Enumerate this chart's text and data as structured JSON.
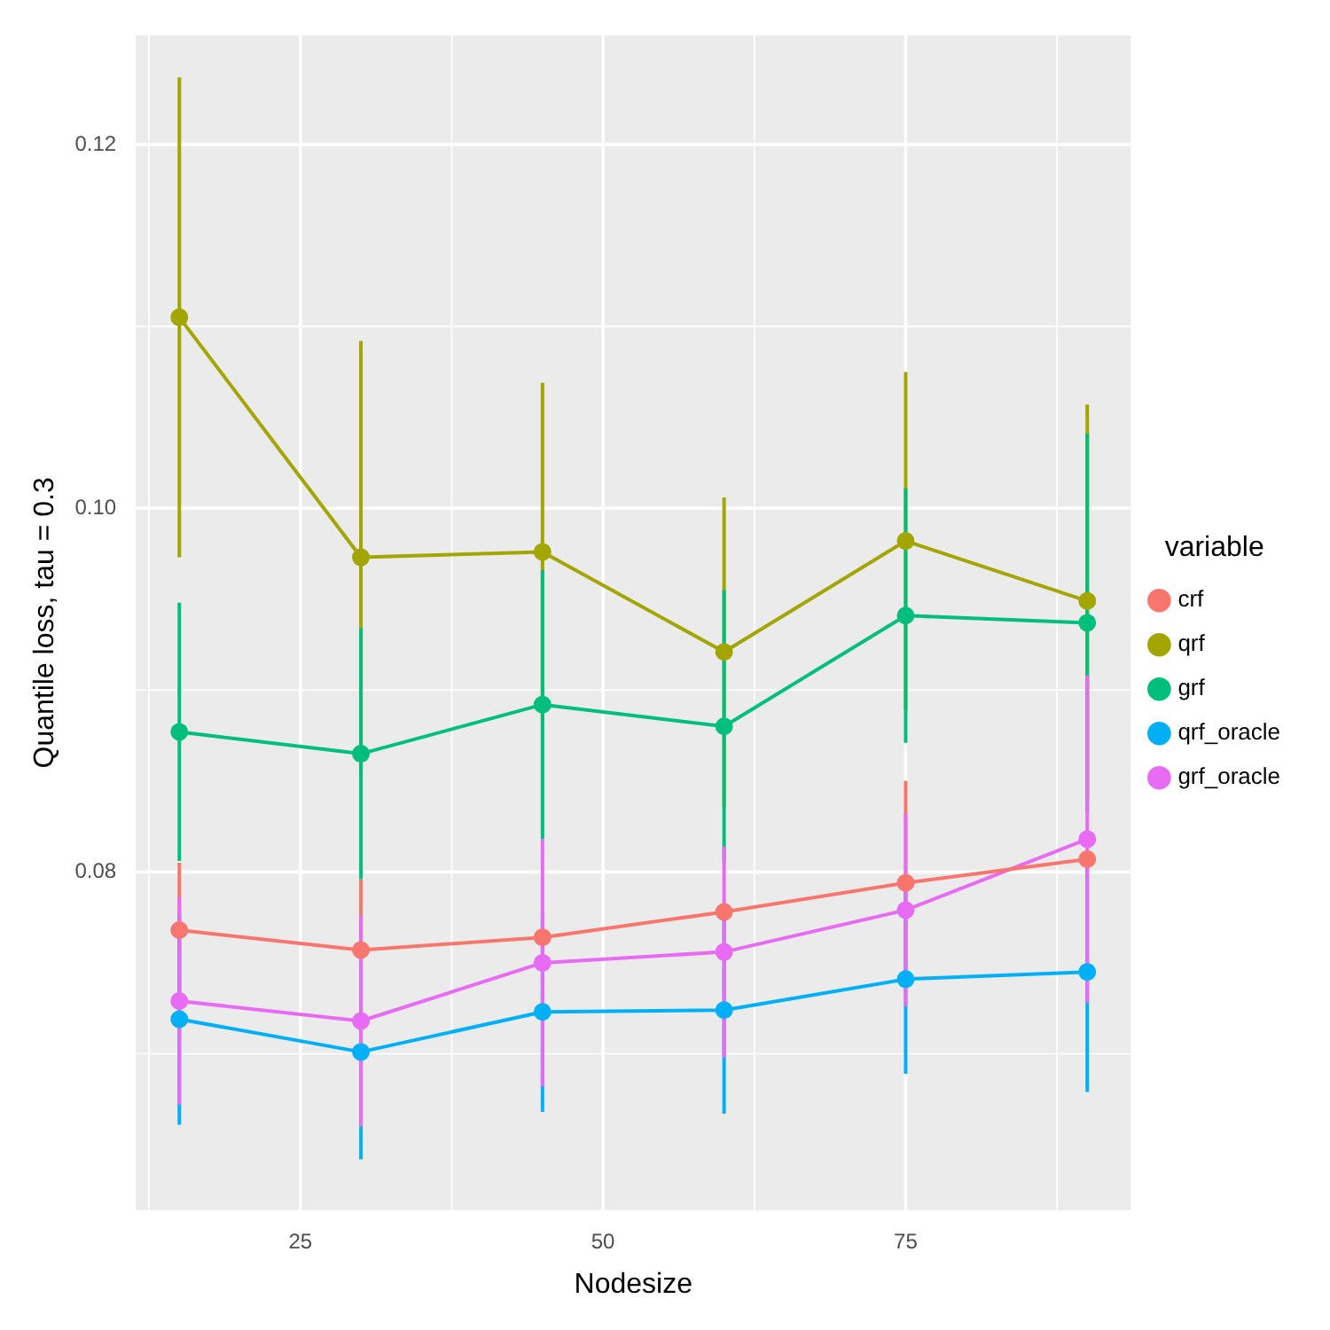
{
  "chart_data": {
    "type": "line",
    "xlabel": "Nodesize",
    "ylabel": "Quantile loss, tau = 0.3",
    "legend_title": "variable",
    "legend": "right",
    "grid": true,
    "marker": "circle",
    "line_style": "solid",
    "x": [
      15,
      30,
      45,
      60,
      75,
      90
    ],
    "xlim": [
      11.4,
      93.6
    ],
    "xticks": [
      25,
      50,
      75
    ],
    "ylim": [
      0.0614,
      0.126
    ],
    "yticks": [
      0.08,
      {
        "value": 0.1,
        "label": "0.10"
      },
      0.12
    ],
    "series": [
      {
        "name": "crf",
        "color": "#f8766d",
        "values": [
          0.0768,
          0.0757,
          0.0764,
          0.0778,
          0.0794,
          0.0807
        ],
        "errors": [
          0.0037,
          0.0039,
          null,
          null,
          0.0056,
          null
        ]
      },
      {
        "name": "qrf",
        "color": "#a3a500",
        "values": [
          0.1105,
          0.0973,
          0.0976,
          0.0921,
          0.0982,
          0.0949
        ],
        "errors": [
          0.0132,
          0.0119,
          0.0093,
          0.0085,
          0.0093,
          0.0108
        ]
      },
      {
        "name": "grf",
        "color": "#00bf7d",
        "values": [
          0.0877,
          0.0865,
          0.0892,
          0.088,
          0.0941,
          0.0937
        ],
        "errors": [
          0.0071,
          0.0069,
          0.0074,
          0.0075,
          0.007,
          0.0104
        ]
      },
      {
        "name": "qrf_oracle",
        "color": "#00b0f6",
        "values": [
          0.0719,
          0.0701,
          0.0723,
          0.0724,
          0.0741,
          0.0745
        ],
        "errors": [
          0.0058,
          0.0059,
          0.0055,
          0.0057,
          0.0052,
          0.0066
        ]
      },
      {
        "name": "grf_oracle",
        "color": "#e76bf3",
        "values": [
          0.0729,
          0.0718,
          0.075,
          0.0756,
          0.0779,
          0.0818
        ],
        "errors": [
          0.0057,
          0.0058,
          0.0068,
          0.0058,
          0.0053,
          0.009
        ]
      }
    ]
  }
}
